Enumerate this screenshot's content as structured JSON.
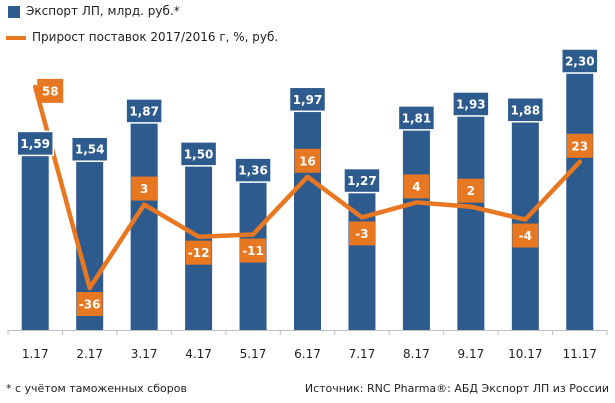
{
  "chart_data": {
    "type": "bar",
    "categories": [
      "1.17",
      "2.17",
      "3.17",
      "4.17",
      "5.17",
      "6.17",
      "7.17",
      "8.17",
      "9.17",
      "10.17",
      "11.17"
    ],
    "series": [
      {
        "name": "Экспорт ЛП, млрд. руб.*",
        "type": "bar",
        "values": [
          1.59,
          1.54,
          1.87,
          1.5,
          1.36,
          1.97,
          1.27,
          1.81,
          1.93,
          1.88,
          2.3
        ],
        "labels": [
          "1,59",
          "1,54",
          "1,87",
          "1,50",
          "1,36",
          "1,97",
          "1,27",
          "1,81",
          "1,93",
          "1,88",
          "2,30"
        ],
        "color": "#2e5b8e"
      },
      {
        "name": "Прирост поставок 2017/2016  г, %, руб.",
        "type": "line",
        "values": [
          58,
          -36,
          3,
          -12,
          -11,
          16,
          -3,
          4,
          2,
          -4,
          23
        ],
        "labels": [
          "58",
          "-36",
          "3",
          "-12",
          "-11",
          "16",
          "-3",
          "4",
          "2",
          "-4",
          "23"
        ],
        "color": "#e87722"
      }
    ],
    "ylim_bars": [
      0,
      2.5
    ],
    "ylim_line": [
      -45,
      65
    ]
  },
  "footnote": "* с учётом таможенных сборов",
  "source": "Источник: RNC Pharma®: АБД Экспорт ЛП из России"
}
